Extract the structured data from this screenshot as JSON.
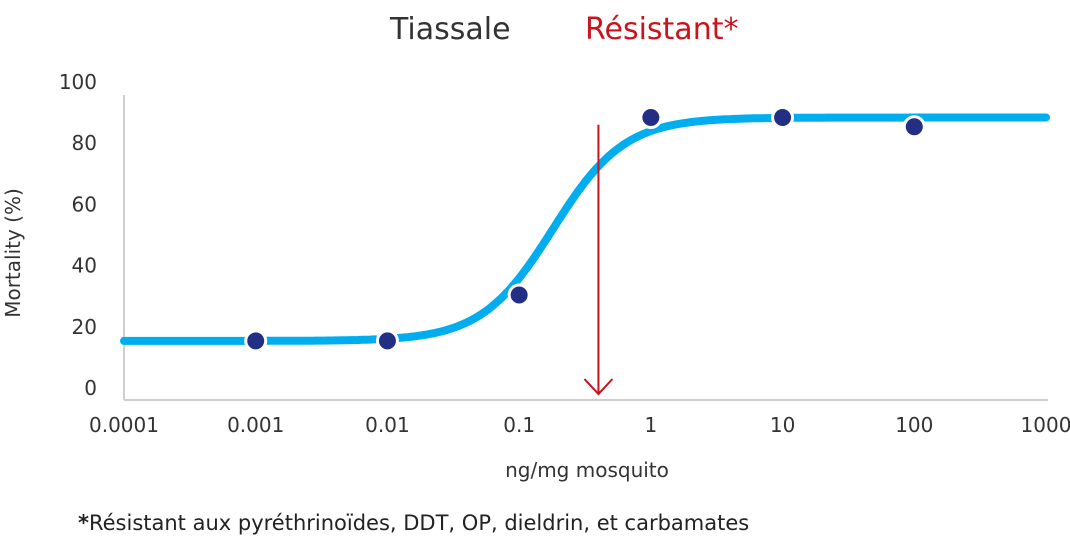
{
  "chart_data": {
    "type": "line",
    "title": "Tiassale",
    "status_label": "Résistant*",
    "xlabel": "ng/mg mosquito",
    "ylabel": "Mortality (%)",
    "x_scale": "log",
    "x_tick_labels": [
      "0.0001",
      "0.001",
      "0.01",
      "0.1",
      "1",
      "10",
      "100",
      "1000"
    ],
    "x_ticks": [
      0.0001,
      0.001,
      0.01,
      0.1,
      1,
      10,
      100,
      1000
    ],
    "y_ticks": [
      0,
      20,
      40,
      60,
      80,
      100
    ],
    "xlim": [
      0.0001,
      1000
    ],
    "ylim": [
      0,
      100
    ],
    "grid": false,
    "points": [
      {
        "x": 0.001,
        "y": 18
      },
      {
        "x": 0.01,
        "y": 18
      },
      {
        "x": 0.1,
        "y": 33
      },
      {
        "x": 1,
        "y": 91
      },
      {
        "x": 10,
        "y": 91
      },
      {
        "x": 100,
        "y": 88
      }
    ],
    "fitted_curve": {
      "bottom": 18,
      "top": 91,
      "ec50": 0.18,
      "hill_slope": 1.6
    },
    "arrow_x": 0.4
  },
  "footnote": {
    "text": "Résistant aux pyréthrinoïdes, DDT, OP, dieldrin, et carbamates"
  },
  "colors": {
    "curve": "#00aeef",
    "point": "#232f85",
    "arrow": "#c8141e",
    "status": "#c8141e",
    "axis": "#cfcfcf",
    "text": "#333333"
  }
}
